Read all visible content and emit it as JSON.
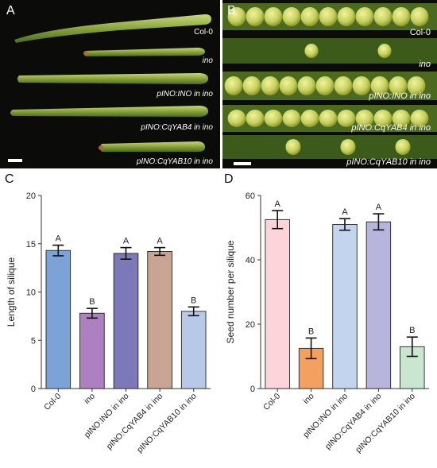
{
  "panels": {
    "A": {
      "letter": "A",
      "labels": [
        {
          "text": "Col-0",
          "italic": false
        },
        {
          "text": "ino",
          "italic": true
        },
        {
          "text": "pINO:INO in ino",
          "italic": true
        },
        {
          "text": "pINO:CqYAB4 in ino",
          "italic": true
        },
        {
          "text": "pINO:CqYAB10 in ino",
          "italic": true
        }
      ]
    },
    "B": {
      "letter": "B",
      "labels": [
        {
          "text": "Col-0",
          "italic": false
        },
        {
          "text": "ino",
          "italic": true
        },
        {
          "text": "pINO:INO in ino",
          "italic": true
        },
        {
          "text": "pINO:CqYAB4 in ino",
          "italic": true
        },
        {
          "text": "pINO:CqYAB10 in ino",
          "italic": true
        }
      ]
    }
  },
  "chart_data": [
    {
      "panel": "C",
      "type": "bar",
      "categories": [
        "Col-0",
        "ino",
        "pINO:INO in ino",
        "pINO:CqYAB4 in ino",
        "pINO:CqYAB10 in ino"
      ],
      "values": [
        14.3,
        7.8,
        14.0,
        14.2,
        8.0
      ],
      "errors": [
        0.55,
        0.5,
        0.6,
        0.4,
        0.45
      ],
      "significance": [
        "A",
        "B",
        "A",
        "A",
        "B"
      ],
      "colors": [
        "#7ba3d8",
        "#ae80c2",
        "#7d78b8",
        "#c9a493",
        "#b8c9e8"
      ],
      "ylabel": "Length of silique",
      "xlabel": "",
      "ylim": [
        0,
        20
      ],
      "yticks": [
        0,
        5,
        10,
        15,
        20
      ]
    },
    {
      "panel": "D",
      "type": "bar",
      "categories": [
        "Col-0",
        "ino",
        "pINO:INO in ino",
        "pINO:CqYAB4 in ino",
        "pINO:CqYAB10 in ino"
      ],
      "values": [
        52.5,
        12.5,
        51.0,
        51.8,
        13.0
      ],
      "errors": [
        2.8,
        3.2,
        1.8,
        2.5,
        3.0
      ],
      "significance": [
        "A",
        "B",
        "A",
        "A",
        "B"
      ],
      "colors": [
        "#fdd4d9",
        "#f4a060",
        "#c3d5ee",
        "#b7b5dc",
        "#cbe6d0"
      ],
      "ylabel": "Seed number per silique",
      "xlabel": "",
      "ylim": [
        0,
        60
      ],
      "yticks": [
        0,
        20,
        40,
        60
      ]
    }
  ]
}
